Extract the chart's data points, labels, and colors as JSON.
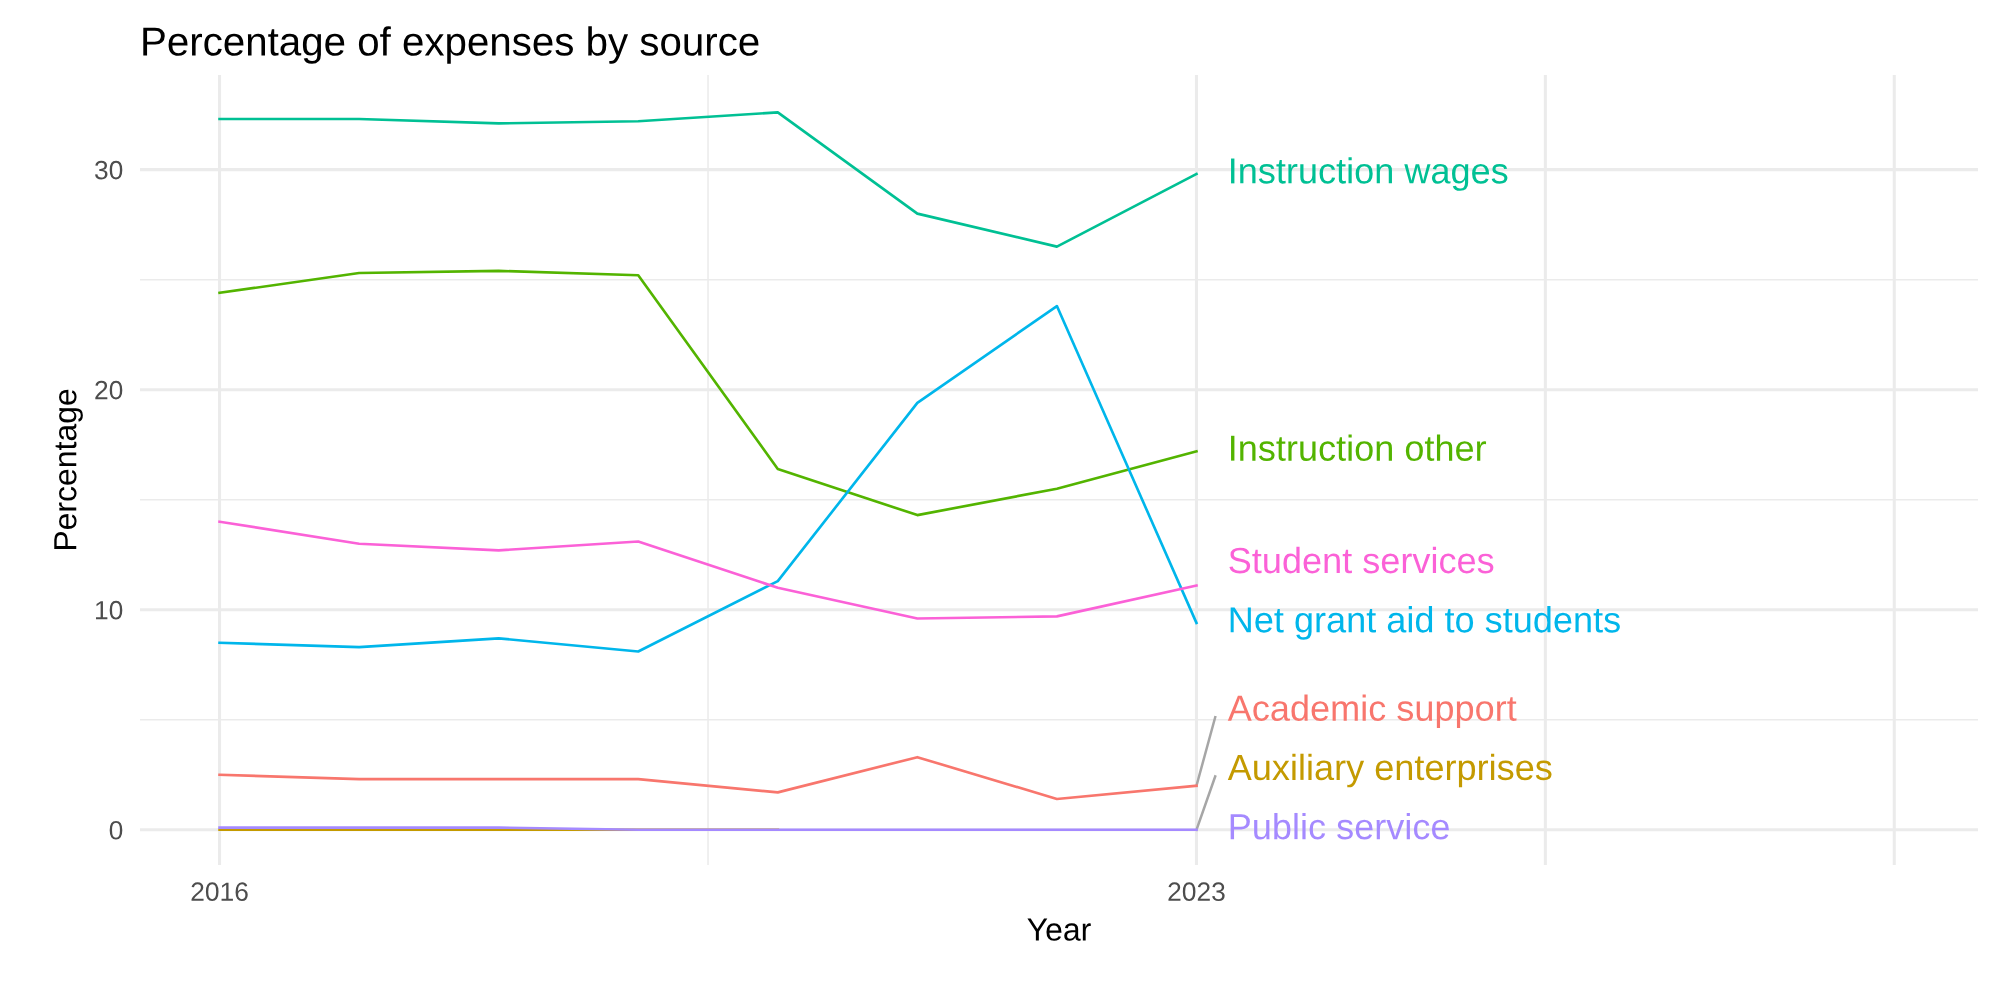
{
  "chart_data": {
    "type": "line",
    "title": "Percentage of expenses by source",
    "xlabel": "Year",
    "ylabel": "Percentage",
    "x": [
      2016,
      2017,
      2018,
      2019,
      2020,
      2021,
      2022,
      2023
    ],
    "series": [
      {
        "name": "Academic support",
        "color": "#f8766d",
        "values": [
          2.5,
          2.3,
          2.3,
          2.3,
          1.7,
          3.3,
          1.4,
          2.0
        ]
      },
      {
        "name": "Auxiliary enterprises",
        "color": "#c49a00",
        "values": [
          0.0,
          0.0,
          0.0,
          0.0,
          0.0,
          null,
          null,
          null
        ]
      },
      {
        "name": "Instruction other",
        "color": "#53b400",
        "values": [
          24.4,
          25.3,
          25.4,
          25.2,
          16.4,
          14.3,
          15.5,
          17.2
        ]
      },
      {
        "name": "Instruction wages",
        "color": "#00c094",
        "values": [
          32.3,
          32.3,
          32.1,
          32.2,
          32.6,
          28.0,
          26.5,
          29.8
        ]
      },
      {
        "name": "Net grant aid to students",
        "color": "#00b6eb",
        "values": [
          8.5,
          8.3,
          8.7,
          8.1,
          11.3,
          19.4,
          23.8,
          9.4
        ]
      },
      {
        "name": "Public service",
        "color": "#a58aff",
        "values": [
          0.1,
          0.1,
          0.1,
          0.0,
          0.0,
          0.0,
          0.0,
          0.0
        ]
      },
      {
        "name": "Student services",
        "color": "#fb61d7",
        "values": [
          14.0,
          13.0,
          12.7,
          13.1,
          11.0,
          9.6,
          9.7,
          11.1
        ]
      }
    ],
    "xlim": [
      2015.43,
      2028.6
    ],
    "xticks": [
      2016,
      2023,
      {
        "value": 2025.5,
        "label": null
      },
      {
        "value": 2028,
        "label": null
      }
    ],
    "ylim": [
      -1.6,
      34.3
    ],
    "yticks": [
      0,
      10,
      20,
      30
    ],
    "grid": true,
    "legend": false,
    "marker": "none",
    "line_style": "solid"
  }
}
